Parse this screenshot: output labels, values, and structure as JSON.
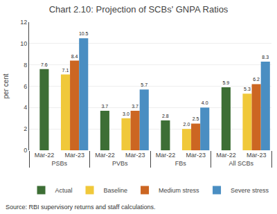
{
  "chart_data": {
    "type": "bar",
    "title": "Chart 2.10: Projection of SCBs' GNPA Ratios",
    "ylabel": "per cent",
    "annotations": [
      "Source: RBI supervisory returns and staff calculations."
    ],
    "categories": [
      [
        "PSBs",
        "Mar-22"
      ],
      [
        "PSBs",
        "Mar-23"
      ],
      [
        "PVBs",
        "Mar-22"
      ],
      [
        "PVBs",
        "Mar-23"
      ],
      [
        "FBs",
        "Mar-22"
      ],
      [
        "FBs",
        "Mar-23"
      ],
      [
        "All SCBs",
        "Mar-22"
      ],
      [
        "All SCBs",
        "Mar-23"
      ]
    ],
    "series": [
      {
        "name": "Actual",
        "color": "#3d6e35",
        "values": [
          7.6,
          null,
          3.7,
          null,
          2.8,
          null,
          5.9,
          null
        ],
        "value_labels": [
          "7.6",
          null,
          "3.7",
          null,
          "2.8",
          null,
          "5.9",
          null
        ]
      },
      {
        "name": "Baseline",
        "color": "#f0c83a",
        "values": [
          null,
          7.1,
          null,
          3.0,
          null,
          2.0,
          null,
          5.3
        ],
        "value_labels": [
          null,
          "7.1",
          null,
          "3.0",
          null,
          "2.0",
          null,
          "5.3"
        ]
      },
      {
        "name": "Medium stress",
        "color": "#cc6622",
        "values": [
          null,
          8.4,
          null,
          3.7,
          null,
          2.5,
          null,
          6.2
        ],
        "value_labels": [
          null,
          "8.4",
          null,
          "3.7",
          null,
          "2.5",
          null,
          "6.2"
        ]
      },
      {
        "name": "Severe stress",
        "color": "#4a8ec2",
        "values": [
          null,
          10.5,
          null,
          5.7,
          null,
          4.0,
          null,
          8.3
        ],
        "value_labels": [
          null,
          "10.5",
          null,
          "5.7",
          null,
          "4.0",
          null,
          "8.3"
        ]
      }
    ],
    "ylim": [
      0,
      12
    ],
    "yticks": [
      0,
      2,
      4,
      6,
      8,
      10,
      12
    ],
    "grid": true,
    "legend": "bottom",
    "data_labels": true
  }
}
